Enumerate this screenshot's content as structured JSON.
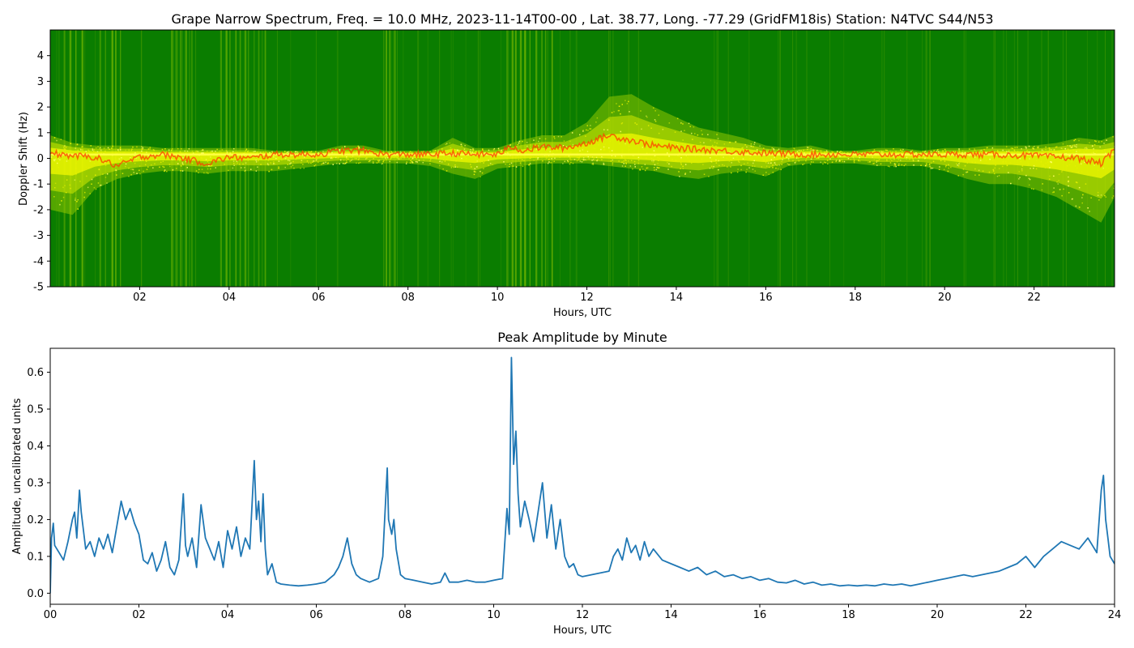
{
  "chart_data": [
    {
      "type": "heatmap",
      "title": "Grape Narrow Spectrum, Freq. = 10.0 MHz, 2023-11-14T00-00 , Lat.  38.77, Long. -77.29 (GridFM18is) Station: N4TVC S44/N53",
      "xlabel": "Hours, UTC",
      "ylabel": "Doppler Shift (Hz)",
      "xlim": [
        0,
        23.8
      ],
      "ylim": [
        -5,
        5
      ],
      "xticks": [
        "02",
        "04",
        "06",
        "08",
        "10",
        "12",
        "14",
        "16",
        "18",
        "20",
        "22"
      ],
      "xtick_values": [
        2,
        4,
        6,
        8,
        10,
        12,
        14,
        16,
        18,
        20,
        22
      ],
      "yticks": [
        "-5",
        "-4",
        "-3",
        "-2",
        "-1",
        "0",
        "1",
        "2",
        "3",
        "4"
      ],
      "ytick_values": [
        -5,
        -4,
        -3,
        -2,
        -1,
        0,
        1,
        2,
        3,
        4
      ],
      "colors": {
        "background": "#0a7d00",
        "mid": "#ffff00",
        "high": "#ff3c00"
      },
      "carrier_line_hz": 0.15,
      "spread_profile": {
        "x": [
          0,
          0.5,
          1,
          1.5,
          2,
          2.5,
          3,
          3.5,
          4,
          4.5,
          5,
          5.5,
          6,
          6.5,
          7,
          7.5,
          8,
          8.5,
          9,
          9.5,
          10,
          10.5,
          11,
          11.5,
          12,
          12.5,
          13,
          13.5,
          14,
          14.5,
          15,
          15.5,
          16,
          16.5,
          17,
          17.5,
          18,
          18.5,
          19,
          19.5,
          20,
          20.5,
          21,
          21.5,
          22,
          22.5,
          23,
          23.5,
          23.8
        ],
        "upper": [
          0.9,
          0.6,
          0.5,
          0.5,
          0.5,
          0.4,
          0.4,
          0.4,
          0.4,
          0.4,
          0.3,
          0.3,
          0.3,
          0.5,
          0.5,
          0.3,
          0.3,
          0.3,
          0.8,
          0.4,
          0.4,
          0.7,
          0.9,
          0.9,
          1.4,
          2.4,
          2.5,
          2.0,
          1.6,
          1.2,
          1.0,
          0.8,
          0.5,
          0.4,
          0.5,
          0.3,
          0.3,
          0.4,
          0.4,
          0.3,
          0.4,
          0.4,
          0.5,
          0.5,
          0.5,
          0.6,
          0.8,
          0.7,
          0.9
        ],
        "lower": [
          -2.0,
          -2.2,
          -1.2,
          -0.8,
          -0.6,
          -0.5,
          -0.5,
          -0.6,
          -0.5,
          -0.5,
          -0.5,
          -0.4,
          -0.3,
          -0.2,
          -0.2,
          -0.2,
          -0.2,
          -0.3,
          -0.6,
          -0.8,
          -0.4,
          -0.3,
          -0.2,
          -0.2,
          -0.2,
          -0.3,
          -0.4,
          -0.5,
          -0.7,
          -0.8,
          -0.6,
          -0.5,
          -0.7,
          -0.3,
          -0.2,
          -0.2,
          -0.2,
          -0.3,
          -0.3,
          -0.3,
          -0.5,
          -0.8,
          -1.0,
          -1.0,
          -1.2,
          -1.5,
          -2.0,
          -2.5,
          -1.5
        ]
      },
      "peak_profile": {
        "x": [
          0,
          0.5,
          1,
          1.5,
          2,
          2.5,
          3,
          3.5,
          4,
          4.5,
          5,
          5.5,
          6,
          6.5,
          7,
          7.5,
          8,
          8.5,
          9,
          9.5,
          10,
          10.3,
          10.6,
          11,
          11.5,
          12,
          12.5,
          13,
          13.5,
          14,
          15,
          16,
          17,
          18,
          19,
          20,
          21,
          22,
          23,
          23.5,
          23.8
        ],
        "hz": [
          0.2,
          0.1,
          0.05,
          -0.3,
          0.05,
          0.15,
          0.0,
          -0.2,
          0.05,
          0.0,
          0.15,
          0.15,
          0.15,
          0.3,
          0.3,
          0.15,
          0.15,
          0.15,
          0.2,
          0.15,
          0.15,
          0.45,
          0.3,
          0.45,
          0.4,
          0.6,
          0.9,
          0.7,
          0.5,
          0.4,
          0.3,
          0.2,
          0.15,
          0.15,
          0.15,
          0.15,
          0.15,
          0.1,
          0.0,
          -0.2,
          0.3
        ]
      },
      "noise_bands": [
        [
          0.3,
          0.7
        ],
        [
          1.1,
          1.6
        ],
        [
          2.7,
          3.3
        ],
        [
          3.8,
          4.8
        ],
        [
          7.5,
          7.8
        ],
        [
          10.2,
          11.3
        ]
      ]
    },
    {
      "type": "line",
      "title": "Peak Amplitude by Minute",
      "xlabel": "Hours, UTC",
      "ylabel": "Amplitude, uncalibrated units",
      "xlim": [
        0,
        24
      ],
      "ylim": [
        -0.03,
        0.665
      ],
      "xticks": [
        "00",
        "02",
        "04",
        "06",
        "08",
        "10",
        "12",
        "14",
        "16",
        "18",
        "20",
        "22",
        "24"
      ],
      "xtick_values": [
        0,
        2,
        4,
        6,
        8,
        10,
        12,
        14,
        16,
        18,
        20,
        22,
        24
      ],
      "yticks": [
        "0.0",
        "0.1",
        "0.2",
        "0.3",
        "0.4",
        "0.5",
        "0.6"
      ],
      "ytick_values": [
        0.0,
        0.1,
        0.2,
        0.3,
        0.4,
        0.5,
        0.6
      ],
      "color": "#1f77b4",
      "series": [
        {
          "x": [
            0,
            0.03,
            0.07,
            0.1,
            0.2,
            0.3,
            0.4,
            0.5,
            0.55,
            0.6,
            0.66,
            0.7,
            0.8,
            0.9,
            1.0,
            1.1,
            1.2,
            1.3,
            1.4,
            1.5,
            1.6,
            1.7,
            1.8,
            1.9,
            2.0,
            2.1,
            2.2,
            2.3,
            2.4,
            2.5,
            2.6,
            2.7,
            2.8,
            2.9,
            3.0,
            3.05,
            3.1,
            3.2,
            3.3,
            3.4,
            3.5,
            3.6,
            3.7,
            3.8,
            3.9,
            4.0,
            4.1,
            4.2,
            4.3,
            4.4,
            4.5,
            4.6,
            4.65,
            4.7,
            4.75,
            4.8,
            4.85,
            4.9,
            5.0,
            5.1,
            5.2,
            5.4,
            5.6,
            5.8,
            6.0,
            6.2,
            6.4,
            6.5,
            6.6,
            6.7,
            6.8,
            6.9,
            7.0,
            7.2,
            7.4,
            7.5,
            7.6,
            7.63,
            7.7,
            7.75,
            7.8,
            7.9,
            8.0,
            8.2,
            8.4,
            8.6,
            8.8,
            8.9,
            9.0,
            9.2,
            9.4,
            9.6,
            9.8,
            10.0,
            10.2,
            10.3,
            10.35,
            10.4,
            10.45,
            10.5,
            10.55,
            10.6,
            10.7,
            10.8,
            10.9,
            11.0,
            11.1,
            11.2,
            11.3,
            11.4,
            11.5,
            11.6,
            11.7,
            11.8,
            11.9,
            12.0,
            12.2,
            12.4,
            12.6,
            12.7,
            12.8,
            12.9,
            13.0,
            13.1,
            13.2,
            13.3,
            13.4,
            13.5,
            13.6,
            13.8,
            14.0,
            14.2,
            14.4,
            14.6,
            14.8,
            15.0,
            15.2,
            15.4,
            15.6,
            15.8,
            16.0,
            16.2,
            16.4,
            16.6,
            16.8,
            17.0,
            17.2,
            17.4,
            17.6,
            17.8,
            18.0,
            18.2,
            18.4,
            18.6,
            18.8,
            19.0,
            19.2,
            19.4,
            19.6,
            19.8,
            20.0,
            20.2,
            20.4,
            20.6,
            20.8,
            21.0,
            21.2,
            21.4,
            21.6,
            21.8,
            22.0,
            22.2,
            22.4,
            22.6,
            22.8,
            23.0,
            23.2,
            23.4,
            23.6,
            23.7,
            23.75,
            23.8,
            23.85,
            23.9,
            24.0
          ],
          "values": [
            0.0,
            0.15,
            0.19,
            0.13,
            0.11,
            0.09,
            0.14,
            0.2,
            0.22,
            0.15,
            0.28,
            0.22,
            0.12,
            0.14,
            0.1,
            0.15,
            0.12,
            0.16,
            0.11,
            0.18,
            0.25,
            0.2,
            0.23,
            0.19,
            0.16,
            0.09,
            0.08,
            0.11,
            0.06,
            0.09,
            0.14,
            0.07,
            0.05,
            0.09,
            0.27,
            0.13,
            0.1,
            0.15,
            0.07,
            0.24,
            0.15,
            0.12,
            0.09,
            0.14,
            0.07,
            0.17,
            0.12,
            0.18,
            0.1,
            0.15,
            0.12,
            0.36,
            0.2,
            0.25,
            0.14,
            0.27,
            0.12,
            0.05,
            0.08,
            0.03,
            0.025,
            0.022,
            0.02,
            0.022,
            0.025,
            0.03,
            0.05,
            0.07,
            0.1,
            0.15,
            0.08,
            0.05,
            0.04,
            0.03,
            0.04,
            0.1,
            0.34,
            0.2,
            0.16,
            0.2,
            0.12,
            0.05,
            0.04,
            0.035,
            0.03,
            0.025,
            0.03,
            0.055,
            0.03,
            0.03,
            0.035,
            0.03,
            0.03,
            0.035,
            0.04,
            0.23,
            0.16,
            0.64,
            0.35,
            0.44,
            0.27,
            0.18,
            0.25,
            0.2,
            0.14,
            0.22,
            0.3,
            0.15,
            0.24,
            0.12,
            0.2,
            0.1,
            0.07,
            0.08,
            0.05,
            0.045,
            0.05,
            0.055,
            0.06,
            0.1,
            0.12,
            0.09,
            0.15,
            0.11,
            0.13,
            0.09,
            0.14,
            0.1,
            0.12,
            0.09,
            0.08,
            0.07,
            0.06,
            0.07,
            0.05,
            0.06,
            0.045,
            0.05,
            0.04,
            0.045,
            0.035,
            0.04,
            0.03,
            0.028,
            0.035,
            0.025,
            0.03,
            0.022,
            0.025,
            0.02,
            0.022,
            0.02,
            0.022,
            0.02,
            0.025,
            0.022,
            0.025,
            0.02,
            0.025,
            0.03,
            0.035,
            0.04,
            0.045,
            0.05,
            0.045,
            0.05,
            0.055,
            0.06,
            0.07,
            0.08,
            0.1,
            0.07,
            0.1,
            0.12,
            0.14,
            0.13,
            0.12,
            0.15,
            0.11,
            0.28,
            0.32,
            0.2,
            0.15,
            0.1,
            0.08
          ]
        }
      ]
    }
  ]
}
